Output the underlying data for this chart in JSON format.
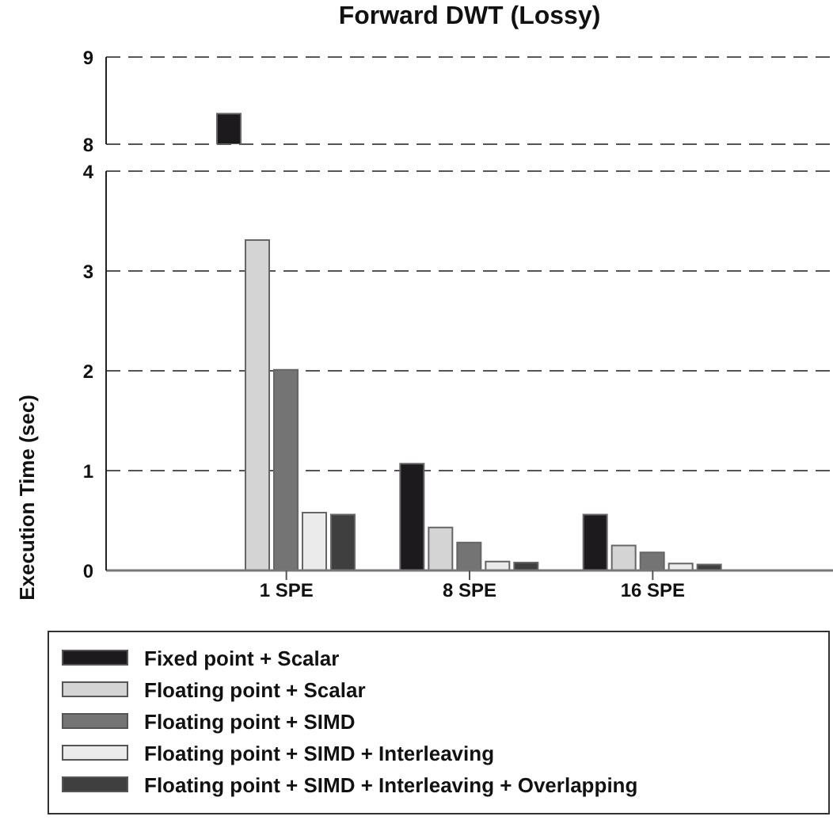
{
  "chart_data": [
    {
      "type": "bar",
      "title": "Forward DWT (Lossy)",
      "categories": [
        null,
        null,
        null
      ],
      "series": [
        {
          "color": "#1c1a1c",
          "values": [
            8.35,
            null,
            null
          ]
        },
        {
          "color": "#d4d4d4",
          "values": [
            null,
            null,
            null
          ]
        },
        {
          "color": "#747474",
          "values": [
            null,
            null,
            null
          ]
        },
        {
          "color": "#ebebeb",
          "values": [
            null,
            null,
            null
          ]
        },
        {
          "color": "#3f3f3f",
          "values": [
            null,
            null,
            null
          ]
        }
      ],
      "ylim": [
        8,
        9
      ],
      "yticks": [
        8,
        9
      ],
      "grid": "y",
      "tick_labels": "y"
    },
    {
      "type": "bar",
      "ylabel": "Execution Time (sec)",
      "categories": [
        "1 SPE",
        "8 SPE",
        "16 SPE"
      ],
      "series": [
        {
          "name": "Fixed point + Scalar",
          "color": "#1c1a1c",
          "values": [
            null,
            1.07,
            0.56
          ]
        },
        {
          "name": "Floating point + Scalar",
          "color": "#d4d4d4",
          "values": [
            3.31,
            0.43,
            0.25
          ]
        },
        {
          "name": "Floating point + SIMD",
          "color": "#747474",
          "values": [
            2.01,
            0.28,
            0.18
          ]
        },
        {
          "name": "Floating point + SIMD + Interleaving",
          "color": "#ebebeb",
          "values": [
            0.58,
            0.09,
            0.07
          ]
        },
        {
          "name": "Floating point + SIMD + Interleaving + Overlapping",
          "color": "#3f3f3f",
          "values": [
            0.56,
            0.08,
            0.06
          ]
        }
      ],
      "ylim": [
        0,
        4
      ],
      "yticks": [
        0,
        1,
        2,
        3,
        4
      ],
      "grid": "y",
      "legend": "bottom"
    }
  ]
}
